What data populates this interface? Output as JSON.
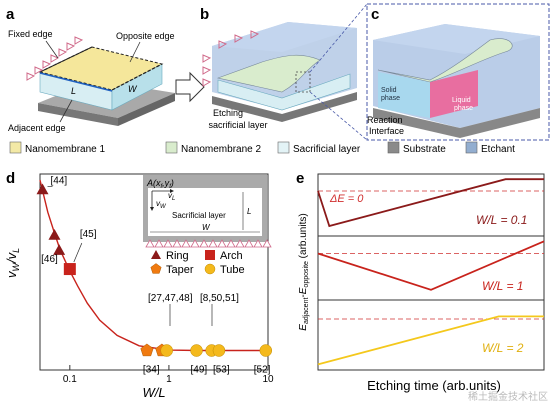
{
  "panels": {
    "a": "a",
    "b": "b",
    "c": "c",
    "d": "d",
    "e": "e"
  },
  "panel_a": {
    "fixed_edge": "Fixed edge",
    "opposite_edge": "Opposite edge",
    "adjacent_edge": "Adjacent edge",
    "L": "L",
    "W": "W"
  },
  "panel_b": {
    "caption_line1": "Etching",
    "caption_line2": "sacrificial layer"
  },
  "panel_c": {
    "solid_phase_1": "Solid",
    "solid_phase_2": "phase",
    "liquid_phase_1": "Liquid",
    "liquid_phase_2": "phase",
    "reaction_1": "Reaction",
    "reaction_2": "Interface"
  },
  "legend": [
    {
      "label": "Nanomembrane 1",
      "color": "#f3e9a6"
    },
    {
      "label": "Nanomembrane 2",
      "color": "#d9eccd"
    },
    {
      "label": "Sacrificial layer",
      "color": "#e3f3f6"
    },
    {
      "label": "Substrate",
      "color": "#8a8a8a"
    },
    {
      "label": "Etchant",
      "color": "#93aed0"
    }
  ],
  "inset": {
    "point": "A(x",
    "sub_f": "f",
    "mid": ",y",
    "sub_f2": "f",
    "close": ")",
    "vL": "v",
    "vL_sub": "L",
    "vW": "v",
    "vW_sub": "W",
    "sacrificial": "Sacrificial layer",
    "L": "L",
    "W": "W"
  },
  "chart_data": [
    {
      "type": "scatter",
      "xscale": "log",
      "xlim": [
        0.05,
        10
      ],
      "ylabel": "v_W/v_L",
      "xlabel": "W/L",
      "xticks": [
        "0.1",
        "1",
        "10"
      ],
      "legend": [
        {
          "name": "Ring",
          "marker": "triangle",
          "color": "#8b1a1a"
        },
        {
          "name": "Arch",
          "marker": "square",
          "color": "#c8231c"
        },
        {
          "name": "Taper",
          "marker": "pentagon",
          "color": "#f07a10"
        },
        {
          "name": "Tube",
          "marker": "circle",
          "color": "#f4b91c"
        }
      ],
      "points": [
        {
          "x": 0.053,
          "y": 0.95,
          "marker": "triangle",
          "color": "#8b1a1a",
          "label": "[44]"
        },
        {
          "x": 0.07,
          "y": 0.71,
          "marker": "triangle",
          "color": "#8b1a1a",
          "label": ""
        },
        {
          "x": 0.078,
          "y": 0.63,
          "marker": "triangle",
          "color": "#8b1a1a",
          "label": "[46]"
        },
        {
          "x": 0.1,
          "y": 0.53,
          "marker": "square",
          "color": "#c8231c",
          "label": "[45]"
        },
        {
          "x": 0.6,
          "y": 0.1,
          "marker": "pentagon",
          "color": "#f07a10",
          "label": "[34]"
        },
        {
          "x": 0.85,
          "y": 0.1,
          "marker": "pentagon",
          "color": "#f07a10",
          "label": ""
        },
        {
          "x": 0.95,
          "y": 0.1,
          "marker": "circle",
          "color": "#f4b91c",
          "label": ""
        },
        {
          "x": 1.9,
          "y": 0.1,
          "marker": "circle",
          "color": "#f4b91c",
          "label": "[49]"
        },
        {
          "x": 2.7,
          "y": 0.1,
          "marker": "circle",
          "color": "#f4b91c",
          "label": ""
        },
        {
          "x": 3.2,
          "y": 0.1,
          "marker": "circle",
          "color": "#f4b91c",
          "label": "[53]"
        },
        {
          "x": 9.5,
          "y": 0.1,
          "marker": "circle",
          "color": "#f4b91c",
          "label": "[52]"
        }
      ],
      "group_labels": [
        "[27,47,48]",
        "[8,50,51]"
      ],
      "curve": [
        [
          0.05,
          1.0
        ],
        [
          0.06,
          0.83
        ],
        [
          0.07,
          0.72
        ],
        [
          0.08,
          0.63
        ],
        [
          0.1,
          0.52
        ],
        [
          0.12,
          0.44
        ],
        [
          0.15,
          0.35
        ],
        [
          0.2,
          0.26
        ],
        [
          0.3,
          0.18
        ],
        [
          0.5,
          0.125
        ],
        [
          1,
          0.102
        ],
        [
          2,
          0.1
        ],
        [
          10,
          0.1
        ]
      ]
    },
    {
      "type": "line",
      "xlabel": "Etching time (arb.units)",
      "ylabel": "E_adjacent-E_opposite (arb.units)",
      "annotation": "ΔE = 0",
      "series": [
        {
          "name": "W/L = 0.1",
          "color": "#8b1a1a",
          "x": [
            0,
            0.05,
            0.83,
            1
          ],
          "y": [
            0.5,
            -0.75,
            0.92,
            0.92
          ]
        },
        {
          "name": "W/L = 1",
          "color": "#c8231c",
          "x": [
            0,
            0.5,
            1
          ],
          "y": [
            0.5,
            -0.75,
            0.92
          ]
        },
        {
          "name": "W/L = 2",
          "color": "#f4c81c",
          "x": [
            0,
            0.8,
            1
          ],
          "y": [
            -0.92,
            0.58,
            0.58
          ]
        }
      ]
    }
  ],
  "watermark": "稀土掘金技术社区"
}
